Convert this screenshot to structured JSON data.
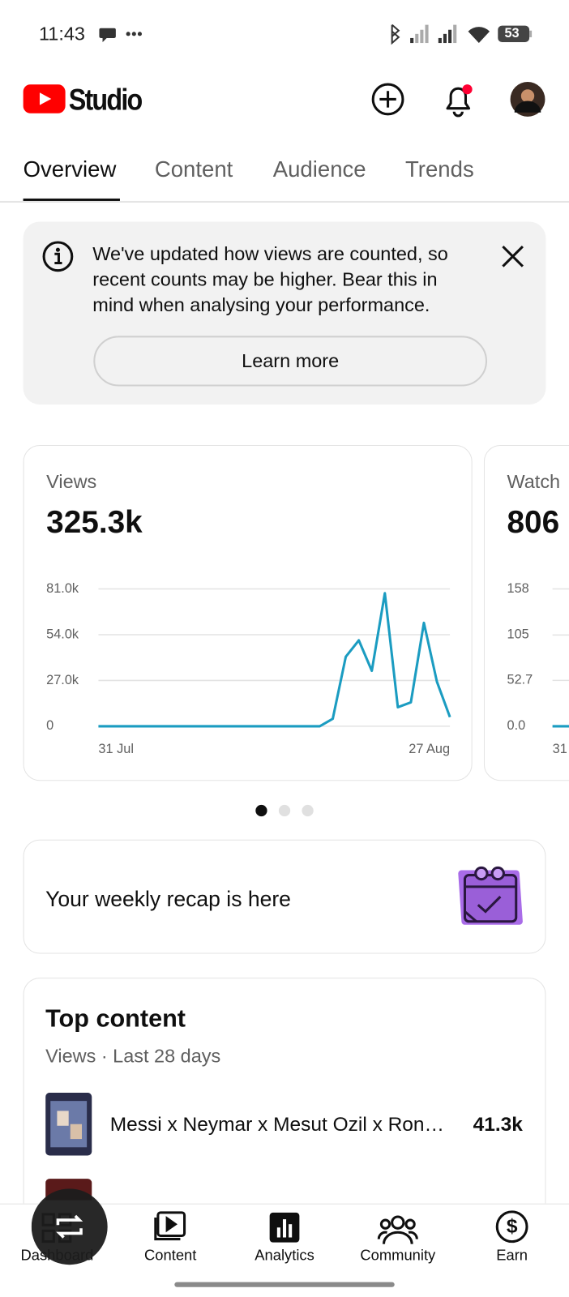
{
  "status_bar": {
    "time": "11:43",
    "battery": "53"
  },
  "header": {
    "brand": "Studio"
  },
  "tabs": [
    "Overview",
    "Content",
    "Audience",
    "Trends"
  ],
  "banner": {
    "lines": [
      "We've updated how views are counted, so",
      "recent counts may be higher. Bear this in",
      "mind when analysing your performance."
    ],
    "button": "Learn more"
  },
  "chart_data": [
    {
      "type": "line",
      "title": "Views",
      "total": "325.3k",
      "categories": [
        "31 Jul",
        null,
        null,
        null,
        null,
        null,
        null,
        null,
        null,
        null,
        null,
        null,
        null,
        null,
        null,
        null,
        null,
        null,
        null,
        null,
        null,
        null,
        null,
        null,
        null,
        null,
        null,
        "27 Aug"
      ],
      "values": [
        0,
        0,
        0,
        0,
        0,
        0,
        0,
        0,
        0,
        0,
        0,
        0,
        0,
        0,
        0,
        0,
        0,
        0,
        4400,
        41000,
        50700,
        32700,
        78500,
        11200,
        14100,
        61000,
        26300,
        5400
      ],
      "color": "#1b9cc1",
      "ylim": [
        0,
        81000
      ],
      "yticks": [
        0,
        {
          "value": 27000,
          "label": "27.0k"
        },
        {
          "value": 54000,
          "label": "54.0k"
        },
        {
          "value": 81000,
          "label": "81.0k"
        }
      ],
      "grid": true
    },
    {
      "type": "line",
      "title": "Watch",
      "total": "806",
      "categories": [
        "31",
        null
      ],
      "values": [
        0,
        0
      ],
      "color": "#1b9cc1",
      "ylim": [
        0,
        158
      ],
      "yticks": [
        {
          "value": 0,
          "label": "0.0"
        },
        52.7,
        105,
        158
      ],
      "grid": true
    }
  ],
  "recap": {
    "text": "Your weekly recap is here"
  },
  "top_content": {
    "title": "Top content",
    "subtitle": "Views · Last 28 days",
    "items": [
      {
        "title": "Messi x Neymar x Mesut Ozil x Ron…",
        "value": "41.3k"
      }
    ]
  },
  "nav": [
    "Dashboard",
    "Content",
    "Analytics",
    "Community",
    "Earn"
  ]
}
